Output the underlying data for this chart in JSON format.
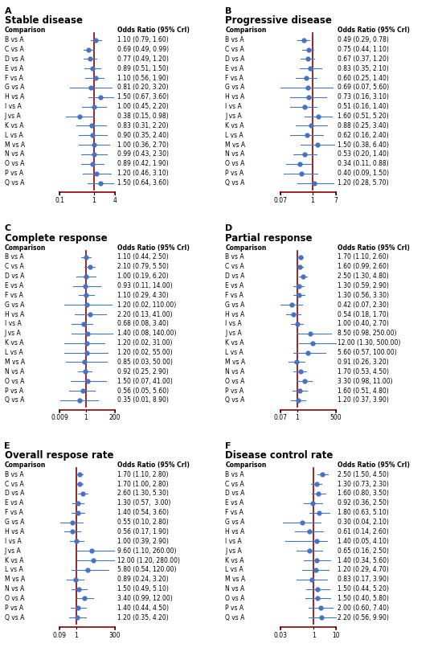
{
  "panels": [
    {
      "label": "A",
      "title": "Stable disease",
      "xmin": 0.1,
      "xmax": 4,
      "xticks": [
        0.1,
        1,
        4
      ],
      "vline": 1,
      "comparisons": [
        "B vs A",
        "C vs A",
        "D vs A",
        "E vs A",
        "F vs A",
        "G vs A",
        "H vs A",
        "I vs A",
        "J vs A",
        "K vs A",
        "L vs A",
        "M vs A",
        "N vs A",
        "O vs A",
        "P vs A",
        "Q vs A"
      ],
      "or": [
        1.1,
        0.69,
        0.77,
        0.89,
        1.1,
        0.81,
        1.5,
        1.0,
        0.38,
        0.83,
        0.9,
        1.0,
        0.99,
        0.89,
        1.2,
        1.5
      ],
      "lo": [
        0.79,
        0.49,
        0.49,
        0.51,
        0.56,
        0.2,
        0.67,
        0.45,
        0.15,
        0.31,
        0.35,
        0.36,
        0.43,
        0.42,
        0.46,
        0.64
      ],
      "hi": [
        1.6,
        0.99,
        1.2,
        1.5,
        1.9,
        3.2,
        3.6,
        2.2,
        0.98,
        2.2,
        2.4,
        2.7,
        2.3,
        1.9,
        3.1,
        3.6
      ],
      "or_labels": [
        "1.10 (0.79, 1.60)",
        "0.69 (0.49, 0.99)",
        "0.77 (0.49, 1.20)",
        "0.89 (0.51, 1.50)",
        "1.10 (0.56, 1.90)",
        "0.81 (0.20, 3.20)",
        "1.50 (0.67, 3.60)",
        "1.00 (0.45, 2.20)",
        "0.38 (0.15, 0.98)",
        "0.83 (0.31, 2.20)",
        "0.90 (0.35, 2.40)",
        "1.00 (0.36, 2.70)",
        "0.99 (0.43, 2.30)",
        "0.89 (0.42, 1.90)",
        "1.20 (0.46, 3.10)",
        "1.50 (0.64, 3.60)"
      ]
    },
    {
      "label": "B",
      "title": "Progressive disease",
      "xmin": 0.07,
      "xmax": 7,
      "xticks": [
        0.07,
        1,
        7
      ],
      "vline": 1,
      "comparisons": [
        "B vs A",
        "C vs A",
        "D vs A",
        "E vs A",
        "F vs A",
        "G vs A",
        "H vs A",
        "I vs A",
        "J vs A",
        "K vs A",
        "L vs A",
        "M vs A",
        "N vs A",
        "O vs A",
        "P vs A",
        "Q vs A"
      ],
      "or": [
        0.49,
        0.75,
        0.67,
        0.83,
        0.6,
        0.69,
        0.73,
        0.51,
        1.6,
        0.88,
        0.62,
        1.5,
        0.53,
        0.34,
        0.4,
        1.2
      ],
      "lo": [
        0.29,
        0.44,
        0.37,
        0.35,
        0.25,
        0.07,
        0.16,
        0.16,
        0.51,
        0.25,
        0.16,
        0.38,
        0.2,
        0.11,
        0.09,
        0.28
      ],
      "hi": [
        0.78,
        1.1,
        1.2,
        2.1,
        1.4,
        5.6,
        3.1,
        1.4,
        5.2,
        3.4,
        2.4,
        6.4,
        1.4,
        0.88,
        1.5,
        5.7
      ],
      "or_labels": [
        "0.49 (0.29, 0.78)",
        "0.75 (0.44, 1.10)",
        "0.67 (0.37, 1.20)",
        "0.83 (0.35, 2.10)",
        "0.60 (0.25, 1.40)",
        "0.69 (0.07, 5.60)",
        "0.73 (0.16, 3.10)",
        "0.51 (0.16, 1.40)",
        "1.60 (0.51, 5.20)",
        "0.88 (0.25, 3.40)",
        "0.62 (0.16, 2.40)",
        "1.50 (0.38, 6.40)",
        "0.53 (0.20, 1.40)",
        "0.34 (0.11, 0.88)",
        "0.40 (0.09, 1.50)",
        "1.20 (0.28, 5.70)"
      ]
    },
    {
      "label": "C",
      "title": "Complete response",
      "xmin": 0.009,
      "xmax": 200,
      "xticks": [
        0.009,
        1,
        200
      ],
      "vline": 1,
      "comparisons": [
        "B vs A",
        "C vs A",
        "D vs A",
        "E vs A",
        "F vs A",
        "G vs A",
        "H vs A",
        "I vs A",
        "J vs A",
        "K vs A",
        "L vs A",
        "M vs A",
        "N vs A",
        "O vs A",
        "P vs A",
        "Q vs A"
      ],
      "or": [
        1.1,
        2.1,
        1.0,
        0.93,
        1.1,
        1.2,
        2.2,
        0.68,
        1.4,
        1.2,
        1.2,
        0.85,
        0.92,
        1.5,
        0.56,
        0.35
      ],
      "lo": [
        0.44,
        0.79,
        0.19,
        0.11,
        0.29,
        0.02,
        0.13,
        0.08,
        0.08,
        0.02,
        0.02,
        0.03,
        0.25,
        0.07,
        0.05,
        0.01
      ],
      "hi": [
        2.5,
        5.5,
        6.2,
        14.0,
        4.3,
        110.0,
        41.0,
        3.4,
        140.0,
        31.0,
        55.0,
        50.0,
        2.9,
        41.0,
        5.6,
        8.9
      ],
      "or_labels": [
        "1.10 (0.44, 2.50)",
        "2.10 (0.79, 5.50)",
        "1.00 (0.19, 6.20)",
        "0.93 (0.11, 14.00)",
        "1.10 (0.29, 4.30)",
        "1.20 (0.02, 110.00)",
        "2.20 (0.13, 41.00)",
        "0.68 (0.08, 3.40)",
        "1.40 (0.08, 140.00)",
        "1.20 (0.02, 31.00)",
        "1.20 (0.02, 55.00)",
        "0.85 (0.03, 50.00)",
        "0.92 (0.25, 2.90)",
        "1.50 (0.07, 41.00)",
        "0.56 (0.05, 5.60)",
        "0.35 (0.01, 8.90)"
      ]
    },
    {
      "label": "D",
      "title": "Partial response",
      "xmin": 0.07,
      "xmax": 500,
      "xticks": [
        0.07,
        1,
        500
      ],
      "vline": 1,
      "comparisons": [
        "B vs A",
        "C vs A",
        "D vs A",
        "E vs A",
        "F vs A",
        "G vs A",
        "H vs A",
        "I vs A",
        "J vs A",
        "K vs A",
        "L vs A",
        "M vs A",
        "N vs A",
        "O vs A",
        "P vs A",
        "Q vs A"
      ],
      "or": [
        1.7,
        1.6,
        2.5,
        1.3,
        1.3,
        0.42,
        0.54,
        1.0,
        8.5,
        12.0,
        5.6,
        0.91,
        1.7,
        3.3,
        1.6,
        1.2
      ],
      "lo": [
        1.1,
        0.99,
        1.3,
        0.59,
        0.56,
        0.07,
        0.18,
        0.4,
        0.98,
        1.3,
        0.57,
        0.26,
        0.53,
        0.98,
        0.51,
        0.37
      ],
      "hi": [
        2.6,
        2.6,
        4.8,
        2.9,
        3.3,
        2.3,
        1.7,
        2.7,
        250.0,
        500.0,
        100.0,
        3.2,
        4.5,
        11.0,
        4.8,
        3.9
      ],
      "or_labels": [
        "1.70 (1.10, 2.60)",
        "1.60 (0.99, 2.60)",
        "2.50 (1.30, 4.80)",
        "1.30 (0.59, 2.90)",
        "1.30 (0.56, 3.30)",
        "0.42 (0.07, 2.30)",
        "0.54 (0.18, 1.70)",
        "1.00 (0.40, 2.70)",
        "8.50 (0.98, 250.00)",
        "12.00 (1.30, 500.00)",
        "5.60 (0.57, 100.00)",
        "0.91 (0.26, 3.20)",
        "1.70 (0.53, 4.50)",
        "3.30 (0.98, 11.00)",
        "1.60 (0.51, 4.80)",
        "1.20 (0.37, 3.90)"
      ]
    },
    {
      "label": "E",
      "title": "Overall respose rate",
      "xmin": 0.09,
      "xmax": 300,
      "xticks": [
        0.09,
        1,
        300
      ],
      "vline": 1,
      "comparisons": [
        "B vs A",
        "C vs A",
        "D vs A",
        "E vs A",
        "F vs A",
        "G vs A",
        "H vs A",
        "I vs A",
        "J vs A",
        "K vs A",
        "L vs A",
        "M vs A",
        "N vs A",
        "O vs A",
        "P vs A",
        "Q vs A"
      ],
      "or": [
        1.7,
        1.7,
        2.6,
        1.3,
        1.4,
        0.55,
        0.56,
        1.0,
        9.6,
        12.0,
        5.8,
        0.89,
        1.5,
        3.4,
        1.4,
        1.2
      ],
      "lo": [
        1.1,
        1.0,
        1.3,
        0.57,
        0.54,
        0.1,
        0.17,
        0.39,
        1.1,
        1.2,
        0.54,
        0.24,
        0.49,
        0.99,
        0.44,
        0.35
      ],
      "hi": [
        2.8,
        2.8,
        5.3,
        3.0,
        3.6,
        2.8,
        1.9,
        2.9,
        260.0,
        280.0,
        120.0,
        3.2,
        5.1,
        12.0,
        4.5,
        4.2
      ],
      "or_labels": [
        "1.70 (1.10, 2.80)",
        "1.70 (1.00, 2.80)",
        "2.60 (1.30, 5.30)",
        "1.30 (0.57,  3.00)",
        "1.40 (0.54, 3.60)",
        "0.55 (0.10, 2.80)",
        "0.56 (0.17, 1.90)",
        "1.00 (0.39, 2.90)",
        "9.60 (1.10, 260.00)",
        "12.00 (1.20, 280.00)",
        "5.80 (0.54, 120.00)",
        "0.89 (0.24, 3.20)",
        "1.50 (0.49, 5.10)",
        "3.40 (0.99, 12.00)",
        "1.40 (0.44, 4.50)",
        "1.20 (0.35, 4.20)"
      ]
    },
    {
      "label": "F",
      "title": "Disease control rate",
      "xmin": 0.03,
      "xmax": 10,
      "xticks": [
        0.03,
        1,
        10
      ],
      "vline": 1,
      "comparisons": [
        "B vs A",
        "C vs A",
        "D vs A",
        "E vs A",
        "F vs A",
        "G vs A",
        "H vs A",
        "I vs A",
        "J vs A",
        "K vs A",
        "L vs A",
        "M vs A",
        "N vs A",
        "O vs A",
        "P vs A",
        "Q vs A"
      ],
      "or": [
        2.5,
        1.3,
        1.6,
        0.92,
        1.8,
        0.3,
        0.61,
        1.4,
        0.65,
        1.4,
        1.2,
        0.83,
        1.5,
        1.5,
        2.0,
        2.2
      ],
      "lo": [
        1.5,
        0.73,
        0.8,
        0.36,
        0.63,
        0.04,
        0.14,
        0.05,
        0.16,
        0.34,
        0.29,
        0.17,
        0.44,
        0.4,
        0.6,
        0.56
      ],
      "hi": [
        4.5,
        2.3,
        3.5,
        2.5,
        5.1,
        2.1,
        2.6,
        4.1,
        2.5,
        5.6,
        4.7,
        3.9,
        5.2,
        5.8,
        7.4,
        9.9
      ],
      "or_labels": [
        "2.50 (1.50, 4.50)",
        "1.30 (0.73, 2.30)",
        "1.60 (0.80, 3.50)",
        "0.92 (0.36, 2.50)",
        "1.80 (0.63, 5.10)",
        "0.30 (0.04, 2.10)",
        "0.61 (0.14, 2.60)",
        "1.40 (0.05, 4.10)",
        "0.65 (0.16, 2.50)",
        "1.40 (0.34, 5.60)",
        "1.20 (0.29, 4.70)",
        "0.83 (0.17, 3.90)",
        "1.50 (0.44, 5.20)",
        "1.50 (0.40, 5.80)",
        "2.00 (0.60, 7.40)",
        "2.20 (0.56, 9.90)"
      ]
    }
  ],
  "dot_color": "#4472C4",
  "line_color": "#4472C4",
  "vline_color": "#8B0000",
  "bracket_color": "#8B0000",
  "bg_color": "#ffffff",
  "font_size": 5.5,
  "title_font_size": 8.5,
  "label_font_size": 5.5
}
